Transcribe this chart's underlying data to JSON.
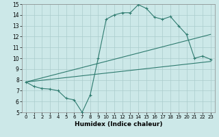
{
  "xlabel": "Humidex (Indice chaleur)",
  "bg_color": "#cce8e8",
  "line_color": "#2d7a6e",
  "grid_color": "#aacccc",
  "xlim": [
    -0.5,
    23.5
  ],
  "ylim": [
    5,
    15
  ],
  "xticks": [
    0,
    1,
    2,
    3,
    4,
    5,
    6,
    7,
    8,
    9,
    10,
    11,
    12,
    13,
    14,
    15,
    16,
    17,
    18,
    19,
    20,
    21,
    22,
    23
  ],
  "yticks": [
    5,
    6,
    7,
    8,
    9,
    10,
    11,
    12,
    13,
    14,
    15
  ],
  "curve1_x": [
    0,
    1,
    2,
    3,
    4,
    5,
    6,
    7,
    8,
    9,
    10,
    11,
    12,
    13,
    14,
    15,
    16,
    17,
    18,
    19,
    20,
    21,
    22,
    23
  ],
  "curve1_y": [
    7.8,
    7.4,
    7.2,
    7.15,
    7.0,
    6.3,
    6.15,
    5.0,
    6.6,
    10.0,
    13.6,
    14.0,
    14.2,
    14.2,
    14.95,
    14.6,
    13.8,
    13.6,
    13.85,
    13.0,
    12.2,
    10.0,
    10.2,
    9.9
  ],
  "curve2_x": [
    0,
    23
  ],
  "curve2_y": [
    7.8,
    9.7
  ],
  "curve3_x": [
    0,
    23
  ],
  "curve3_y": [
    7.8,
    12.2
  ]
}
